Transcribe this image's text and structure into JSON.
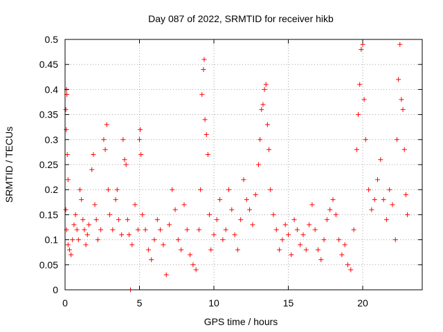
{
  "chart_data": {
    "type": "scatter",
    "title": "Day 087 of 2022, SRMTID for receiver hikb",
    "xlabel": "GPS time / hours",
    "ylabel": "SRMTID / TECUs",
    "xlim": [
      0,
      24
    ],
    "ylim": [
      0,
      0.5
    ],
    "xticks": [
      0,
      5,
      10,
      15,
      20
    ],
    "yticks": [
      0,
      0.05,
      0.1,
      0.15,
      0.2,
      0.25,
      0.3,
      0.35,
      0.4,
      0.45,
      0.5
    ],
    "grid": true,
    "marker": "plus",
    "series_color": "#ff0000",
    "series": [
      {
        "values": [
          [
            0.05,
            0.36
          ],
          [
            0.1,
            0.4
          ],
          [
            0.12,
            0.39
          ],
          [
            0.08,
            0.32
          ],
          [
            0.15,
            0.27
          ],
          [
            0.2,
            0.22
          ],
          [
            0.05,
            0.16
          ],
          [
            0.1,
            0.12
          ],
          [
            0.2,
            0.09
          ],
          [
            0.3,
            0.08
          ],
          [
            0.4,
            0.07
          ],
          [
            0.5,
            0.1
          ],
          [
            0.6,
            0.13
          ],
          [
            0.7,
            0.15
          ],
          [
            0.8,
            0.12
          ],
          [
            0.9,
            0.1
          ],
          [
            1.0,
            0.2
          ],
          [
            1.1,
            0.18
          ],
          [
            1.2,
            0.14
          ],
          [
            1.3,
            0.12
          ],
          [
            1.4,
            0.09
          ],
          [
            1.5,
            0.11
          ],
          [
            1.6,
            0.13
          ],
          [
            1.8,
            0.24
          ],
          [
            1.9,
            0.27
          ],
          [
            2.0,
            0.17
          ],
          [
            2.1,
            0.14
          ],
          [
            2.2,
            0.1
          ],
          [
            2.4,
            0.12
          ],
          [
            2.6,
            0.3
          ],
          [
            2.7,
            0.28
          ],
          [
            2.8,
            0.33
          ],
          [
            2.9,
            0.2
          ],
          [
            3.0,
            0.15
          ],
          [
            3.2,
            0.12
          ],
          [
            3.4,
            0.18
          ],
          [
            3.5,
            0.2
          ],
          [
            3.6,
            0.14
          ],
          [
            3.8,
            0.11
          ],
          [
            3.9,
            0.3
          ],
          [
            4.0,
            0.26
          ],
          [
            4.1,
            0.25
          ],
          [
            4.2,
            0.14
          ],
          [
            4.3,
            0.11
          ],
          [
            4.4,
            0.0
          ],
          [
            4.5,
            0.09
          ],
          [
            4.7,
            0.17
          ],
          [
            4.9,
            0.12
          ],
          [
            5.0,
            0.3
          ],
          [
            5.05,
            0.32
          ],
          [
            5.1,
            0.27
          ],
          [
            5.2,
            0.15
          ],
          [
            5.4,
            0.12
          ],
          [
            5.6,
            0.08
          ],
          [
            5.8,
            0.06
          ],
          [
            6.0,
            0.1
          ],
          [
            6.2,
            0.14
          ],
          [
            6.4,
            0.12
          ],
          [
            6.6,
            0.09
          ],
          [
            6.8,
            0.03
          ],
          [
            7.0,
            0.13
          ],
          [
            7.2,
            0.2
          ],
          [
            7.4,
            0.16
          ],
          [
            7.6,
            0.1
          ],
          [
            7.8,
            0.08
          ],
          [
            8.0,
            0.17
          ],
          [
            8.2,
            0.12
          ],
          [
            8.4,
            0.07
          ],
          [
            8.6,
            0.05
          ],
          [
            8.8,
            0.04
          ],
          [
            9.0,
            0.12
          ],
          [
            9.1,
            0.2
          ],
          [
            9.2,
            0.39
          ],
          [
            9.3,
            0.44
          ],
          [
            9.35,
            0.46
          ],
          [
            9.4,
            0.34
          ],
          [
            9.5,
            0.31
          ],
          [
            9.6,
            0.27
          ],
          [
            9.7,
            0.15
          ],
          [
            9.8,
            0.08
          ],
          [
            10.0,
            0.11
          ],
          [
            10.2,
            0.14
          ],
          [
            10.4,
            0.18
          ],
          [
            10.6,
            0.1
          ],
          [
            10.8,
            0.12
          ],
          [
            11.0,
            0.2
          ],
          [
            11.2,
            0.16
          ],
          [
            11.4,
            0.11
          ],
          [
            11.6,
            0.08
          ],
          [
            11.8,
            0.14
          ],
          [
            12.0,
            0.22
          ],
          [
            12.2,
            0.18
          ],
          [
            12.4,
            0.16
          ],
          [
            12.6,
            0.13
          ],
          [
            12.8,
            0.19
          ],
          [
            13.0,
            0.25
          ],
          [
            13.1,
            0.3
          ],
          [
            13.2,
            0.36
          ],
          [
            13.3,
            0.37
          ],
          [
            13.4,
            0.4
          ],
          [
            13.5,
            0.41
          ],
          [
            13.6,
            0.33
          ],
          [
            13.7,
            0.28
          ],
          [
            13.8,
            0.2
          ],
          [
            14.0,
            0.15
          ],
          [
            14.2,
            0.12
          ],
          [
            14.4,
            0.08
          ],
          [
            14.6,
            0.1
          ],
          [
            14.8,
            0.13
          ],
          [
            15.0,
            0.11
          ],
          [
            15.2,
            0.07
          ],
          [
            15.4,
            0.14
          ],
          [
            15.6,
            0.12
          ],
          [
            15.8,
            0.09
          ],
          [
            16.0,
            0.11
          ],
          [
            16.2,
            0.08
          ],
          [
            16.4,
            0.13
          ],
          [
            16.6,
            0.17
          ],
          [
            16.8,
            0.12
          ],
          [
            17.0,
            0.08
          ],
          [
            17.2,
            0.06
          ],
          [
            17.4,
            0.1
          ],
          [
            17.6,
            0.14
          ],
          [
            17.8,
            0.16
          ],
          [
            18.0,
            0.18
          ],
          [
            18.2,
            0.15
          ],
          [
            18.4,
            0.1
          ],
          [
            18.6,
            0.07
          ],
          [
            18.8,
            0.09
          ],
          [
            19.0,
            0.05
          ],
          [
            19.2,
            0.04
          ],
          [
            19.4,
            0.12
          ],
          [
            19.6,
            0.28
          ],
          [
            19.7,
            0.35
          ],
          [
            19.8,
            0.41
          ],
          [
            19.9,
            0.48
          ],
          [
            20.0,
            0.49
          ],
          [
            20.1,
            0.38
          ],
          [
            20.2,
            0.3
          ],
          [
            20.4,
            0.2
          ],
          [
            20.6,
            0.16
          ],
          [
            20.8,
            0.18
          ],
          [
            21.0,
            0.22
          ],
          [
            21.2,
            0.26
          ],
          [
            21.4,
            0.18
          ],
          [
            21.6,
            0.14
          ],
          [
            21.8,
            0.2
          ],
          [
            22.0,
            0.17
          ],
          [
            22.2,
            0.1
          ],
          [
            22.3,
            0.3
          ],
          [
            22.4,
            0.42
          ],
          [
            22.5,
            0.49
          ],
          [
            22.6,
            0.38
          ],
          [
            22.7,
            0.36
          ],
          [
            22.8,
            0.28
          ],
          [
            22.9,
            0.19
          ],
          [
            23.0,
            0.15
          ]
        ]
      }
    ]
  }
}
